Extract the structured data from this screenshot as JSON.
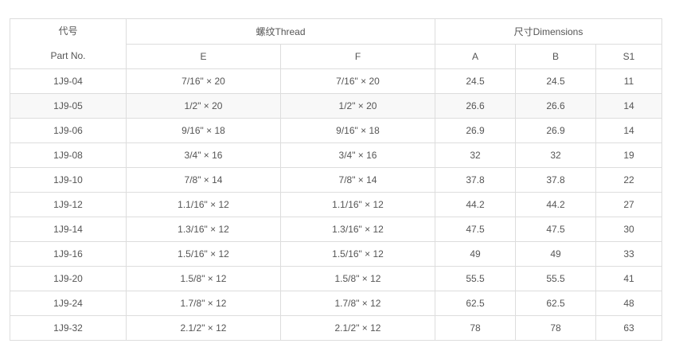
{
  "header": {
    "part_cn": "代号",
    "part_en": "Part No.",
    "thread": "螺纹Thread",
    "dimensions": "尺寸Dimensions",
    "sub": [
      "E",
      "F",
      "A",
      "B",
      "S1"
    ]
  },
  "rows": [
    [
      "1J9-04",
      "7/16\" × 20",
      "7/16\" × 20",
      "24.5",
      "24.5",
      "11"
    ],
    [
      "1J9-05",
      "1/2\" × 20",
      "1/2\" × 20",
      "26.6",
      "26.6",
      "14"
    ],
    [
      "1J9-06",
      "9/16\" × 18",
      "9/16\" × 18",
      "26.9",
      "26.9",
      "14"
    ],
    [
      "1J9-08",
      "3/4\" × 16",
      "3/4\" × 16",
      "32",
      "32",
      "19"
    ],
    [
      "1J9-10",
      "7/8\" × 14",
      "7/8\" × 14",
      "37.8",
      "37.8",
      "22"
    ],
    [
      "1J9-12",
      "1.1/16\" × 12",
      "1.1/16\" × 12",
      "44.2",
      "44.2",
      "27"
    ],
    [
      "1J9-14",
      "1.3/16\" × 12",
      "1.3/16\" × 12",
      "47.5",
      "47.5",
      "30"
    ],
    [
      "1J9-16",
      "1.5/16\" × 12",
      "1.5/16\" × 12",
      "49",
      "49",
      "33"
    ],
    [
      "1J9-20",
      "1.5/8\" × 12",
      "1.5/8\" × 12",
      "55.5",
      "55.5",
      "41"
    ],
    [
      "1J9-24",
      "1.7/8\" × 12",
      "1.7/8\" × 12",
      "62.5",
      "62.5",
      "48"
    ],
    [
      "1J9-32",
      "2.1/2\" × 12",
      "2.1/2\" × 12",
      "78",
      "78",
      "63"
    ]
  ],
  "shaded_row": 1,
  "colors": {
    "border": "#dddddd",
    "text": "#555555",
    "shade": "#f8f8f8"
  }
}
